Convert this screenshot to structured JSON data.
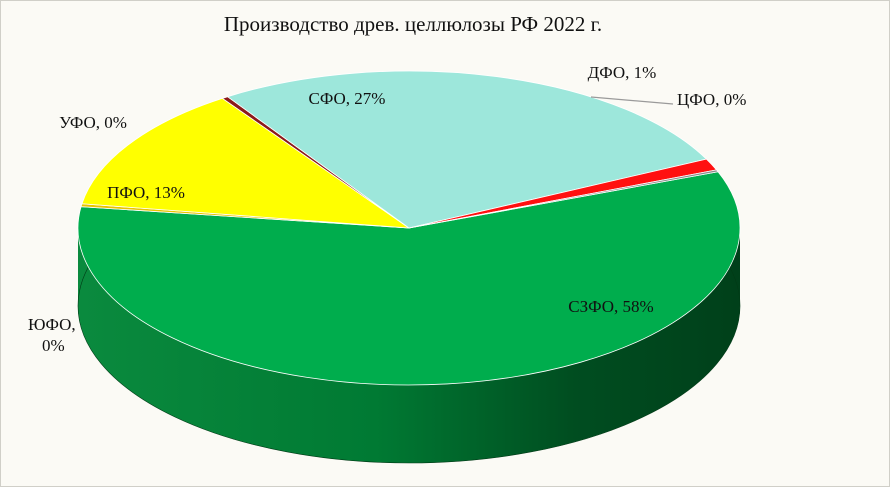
{
  "chart_data": {
    "type": "pie",
    "title": "Производство древ. целлюлозы РФ 2022 г.",
    "slices": [
      {
        "name": "СЗФО",
        "value": 58,
        "label": "СЗФО, 58%",
        "color": "#00ad4d"
      },
      {
        "name": "ЮФО",
        "value": 0.3,
        "label": "ЮФО, 0%",
        "color": "#e8c400"
      },
      {
        "name": "ПФО",
        "value": 13,
        "label": "ПФО, 13%",
        "color": "#ffff00"
      },
      {
        "name": "УФО",
        "value": 0.3,
        "label": "УФО, 0%",
        "color": "#8b1a1a"
      },
      {
        "name": "СФО",
        "value": 27,
        "label": "СФО, 27%",
        "color": "#9de7db"
      },
      {
        "name": "ДФО",
        "value": 1.2,
        "label": "ДФО, 1%",
        "color": "#ff1010"
      },
      {
        "name": "ЦФО",
        "value": 0.2,
        "label": "ЦФО, 0%",
        "color": "#8a8a8a"
      }
    ],
    "style": "3d-tilted",
    "legend": "none"
  }
}
